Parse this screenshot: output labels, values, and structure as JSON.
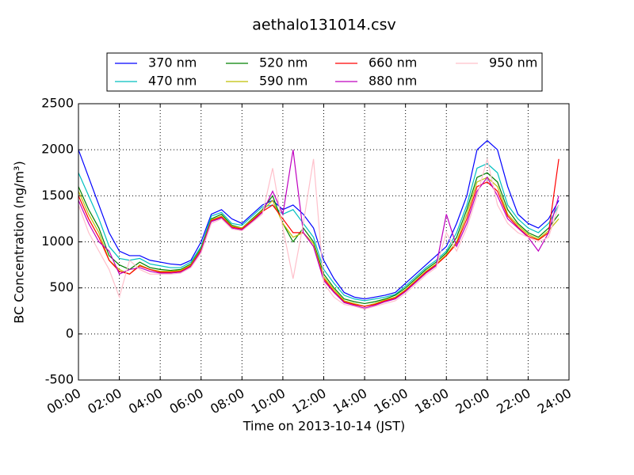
{
  "chart_data": {
    "type": "line",
    "title": "aethalo131014.csv",
    "x_label": "Time on 2013-10-14 (JST)",
    "y_label": "BC Concentration (ng/m³)",
    "x": [
      0,
      0.5,
      1,
      1.5,
      2,
      2.5,
      3,
      3.5,
      4,
      4.5,
      5,
      5.5,
      6,
      6.5,
      7,
      7.5,
      8,
      8.5,
      9,
      9.5,
      10,
      10.5,
      11,
      11.5,
      12,
      12.5,
      13,
      13.5,
      14,
      14.5,
      15,
      15.5,
      16,
      16.5,
      17,
      17.5,
      18,
      18.5,
      19,
      19.5,
      20,
      20.5,
      21,
      21.5,
      22,
      22.5,
      23,
      23.5
    ],
    "xlim": [
      0,
      24
    ],
    "xticks": [
      {
        "value": 0,
        "label": "00:00"
      },
      {
        "value": 2,
        "label": "02:00"
      },
      {
        "value": 4,
        "label": "04:00"
      },
      {
        "value": 6,
        "label": "06:00"
      },
      {
        "value": 8,
        "label": "08:00"
      },
      {
        "value": 10,
        "label": "10:00"
      },
      {
        "value": 12,
        "label": "12:00"
      },
      {
        "value": 14,
        "label": "14:00"
      },
      {
        "value": 16,
        "label": "16:00"
      },
      {
        "value": 18,
        "label": "18:00"
      },
      {
        "value": 20,
        "label": "20:00"
      },
      {
        "value": 22,
        "label": "22:00"
      },
      {
        "value": 24,
        "label": "24:00"
      }
    ],
    "ylim": [
      -500,
      2500
    ],
    "yticks": [
      -500,
      0,
      500,
      1000,
      1500,
      2000,
      2500
    ],
    "grid": true,
    "series": [
      {
        "name": "370 nm",
        "color": "#0000ff",
        "values": [
          2000,
          1700,
          1400,
          1100,
          900,
          850,
          850,
          800,
          780,
          760,
          750,
          800,
          1000,
          1300,
          1350,
          1250,
          1200,
          1300,
          1400,
          1450,
          1350,
          1400,
          1300,
          1150,
          800,
          600,
          450,
          400,
          380,
          400,
          420,
          450,
          550,
          650,
          750,
          850,
          950,
          1200,
          1500,
          2000,
          2100,
          2000,
          1600,
          1300,
          1200,
          1150,
          1250,
          1450
        ]
      },
      {
        "name": "470 nm",
        "color": "#00bfbf",
        "values": [
          1750,
          1500,
          1250,
          950,
          820,
          800,
          820,
          760,
          740,
          720,
          720,
          780,
          950,
          1280,
          1320,
          1200,
          1180,
          1280,
          1380,
          1400,
          1300,
          1350,
          1200,
          1050,
          700,
          550,
          420,
          380,
          360,
          380,
          400,
          430,
          520,
          620,
          720,
          800,
          900,
          1100,
          1400,
          1800,
          1850,
          1750,
          1400,
          1250,
          1150,
          1100,
          1200,
          1400
        ]
      },
      {
        "name": "520 nm",
        "color": "#008000",
        "values": [
          1600,
          1350,
          1150,
          850,
          750,
          700,
          780,
          720,
          700,
          690,
          700,
          760,
          930,
          1250,
          1300,
          1180,
          1150,
          1250,
          1350,
          1500,
          1200,
          1000,
          1150,
          1000,
          650,
          500,
          380,
          350,
          330,
          350,
          380,
          420,
          500,
          600,
          700,
          780,
          880,
          1050,
          1350,
          1700,
          1750,
          1650,
          1350,
          1200,
          1100,
          1050,
          1150,
          1300
        ]
      },
      {
        "name": "590 nm",
        "color": "#bfbf00",
        "values": [
          1550,
          1300,
          1100,
          800,
          700,
          650,
          750,
          700,
          680,
          680,
          690,
          750,
          920,
          1240,
          1280,
          1170,
          1150,
          1240,
          1340,
          1450,
          1200,
          1050,
          1100,
          980,
          620,
          480,
          360,
          330,
          300,
          330,
          370,
          400,
          480,
          580,
          680,
          760,
          860,
          1000,
          1300,
          1650,
          1700,
          1600,
          1300,
          1180,
          1080,
          1030,
          1120,
          1250
        ]
      },
      {
        "name": "660 nm",
        "color": "#ff0000",
        "values": [
          1500,
          1250,
          1050,
          800,
          680,
          650,
          740,
          700,
          670,
          670,
          680,
          740,
          910,
          1230,
          1270,
          1160,
          1140,
          1230,
          1330,
          1400,
          1250,
          1100,
          1100,
          950,
          600,
          460,
          350,
          320,
          300,
          320,
          360,
          390,
          470,
          570,
          670,
          750,
          850,
          980,
          1250,
          1600,
          1650,
          1550,
          1280,
          1160,
          1060,
          1020,
          1100,
          1900
        ]
      },
      {
        "name": "880 nm",
        "color": "#bf00bf",
        "values": [
          1450,
          1200,
          1000,
          900,
          650,
          700,
          720,
          680,
          660,
          660,
          670,
          730,
          900,
          1220,
          1260,
          1150,
          1130,
          1220,
          1320,
          1550,
          1300,
          2000,
          1100,
          950,
          580,
          450,
          340,
          310,
          280,
          310,
          350,
          380,
          460,
          560,
          660,
          740,
          1300,
          950,
          1200,
          1550,
          1700,
          1500,
          1250,
          1150,
          1050,
          900,
          1100,
          1500
        ]
      },
      {
        "name": "950 nm",
        "color": "#ffc0cb",
        "values": [
          1400,
          1100,
          900,
          700,
          400,
          800,
          700,
          650,
          650,
          650,
          660,
          720,
          880,
          1200,
          1250,
          1140,
          1120,
          1210,
          1300,
          1800,
          1150,
          600,
          1200,
          1900,
          550,
          400,
          320,
          300,
          270,
          300,
          330,
          360,
          440,
          540,
          640,
          720,
          1100,
          900,
          1150,
          1500,
          1900,
          1400,
          1200,
          1100,
          1050,
          1000,
          1050,
          1400
        ]
      }
    ]
  }
}
